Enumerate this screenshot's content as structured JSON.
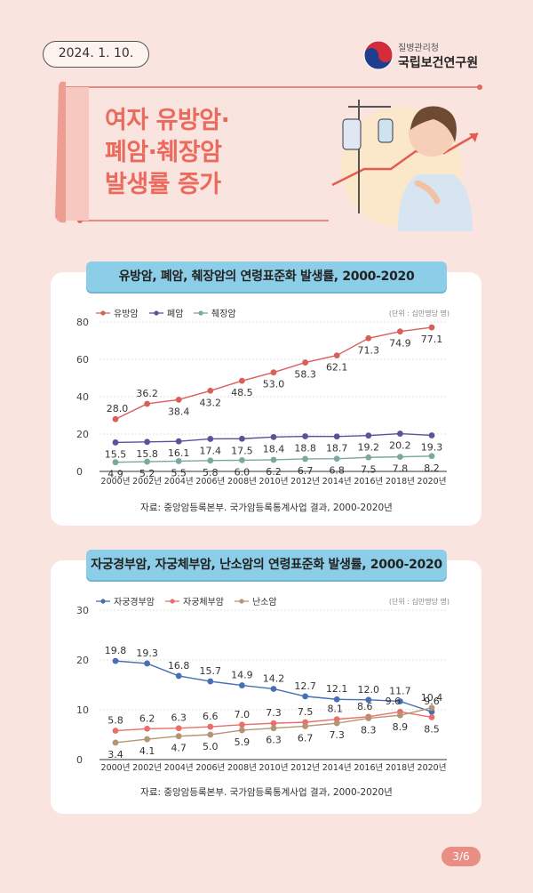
{
  "header": {
    "date": "2024. 1. 10.",
    "org_small": "질병관리청",
    "org_name": "국립보건연구원",
    "title": "여자 유방암·\n폐암·췌장암\n발생률 증가"
  },
  "colors": {
    "red": "#d9605a",
    "purple": "#5c5299",
    "teal": "#7ba8a0",
    "blue": "#4670b3",
    "pink": "#e86f6a",
    "tan": "#b59473",
    "accent": "#ea6a5d"
  },
  "chart_data": [
    {
      "type": "line",
      "title": "유방암, 폐암, 췌장암의 연령표준화 발생률, 2000-2020",
      "unit": "(단위 : 십만명당 명)",
      "source": "자료: 중앙암등록본부. 국가암등록통계사업 결과, 2000-2020년",
      "categories": [
        "2000년",
        "2002년",
        "2004년",
        "2006년",
        "2008년",
        "2010년",
        "2012년",
        "2014년",
        "2016년",
        "2018년",
        "2020년"
      ],
      "yticks": [
        "0",
        "20",
        "40",
        "60",
        "80"
      ],
      "ylim": [
        0,
        80
      ],
      "legend_position": "top-left",
      "series": [
        {
          "name": "유방암",
          "color": "#d9605a",
          "values": [
            28.0,
            36.2,
            38.4,
            43.2,
            48.5,
            53.0,
            58.3,
            62.1,
            71.3,
            74.9,
            77.1
          ],
          "labels": [
            "28.0",
            "36.2",
            "38.4",
            "43.2",
            "48.5",
            "53.0",
            "58.3",
            "62.1",
            "71.3",
            "74.9",
            "77.1"
          ]
        },
        {
          "name": "폐암",
          "color": "#5c5299",
          "values": [
            15.5,
            15.8,
            16.1,
            17.4,
            17.5,
            18.4,
            18.8,
            18.7,
            19.2,
            20.2,
            19.3
          ],
          "labels": [
            "15.5",
            "15.8",
            "16.1",
            "17.4",
            "17.5",
            "18.4",
            "18.8",
            "18.7",
            "19.2",
            "20.2",
            "19.3"
          ]
        },
        {
          "name": "췌장암",
          "color": "#7ba8a0",
          "values": [
            4.9,
            5.2,
            5.5,
            5.8,
            6.0,
            6.2,
            6.7,
            6.8,
            7.5,
            7.8,
            8.2
          ],
          "labels": [
            "4.9",
            "5.2",
            "5.5",
            "5.8",
            "6.0",
            "6.2",
            "6.7",
            "6.8",
            "7.5",
            "7.8",
            "8.2"
          ]
        }
      ]
    },
    {
      "type": "line",
      "title": "자궁경부암, 자궁체부암, 난소암의 연령표준화 발생률, 2000-2020",
      "unit": "(단위 : 십만명당 명)",
      "source": "자료: 중앙암등록본부. 국가암등록통계사업 결과, 2000-2020년",
      "categories": [
        "2000년",
        "2002년",
        "2004년",
        "2006년",
        "2008년",
        "2010년",
        "2012년",
        "2014년",
        "2016년",
        "2018년",
        "2020년"
      ],
      "yticks": [
        "0",
        "10",
        "20",
        "30"
      ],
      "ylim": [
        0,
        30
      ],
      "legend_position": "top-left",
      "series": [
        {
          "name": "자궁경부암",
          "color": "#4670b3",
          "values": [
            19.8,
            19.3,
            16.8,
            15.7,
            14.9,
            14.2,
            12.7,
            12.1,
            12.0,
            11.7,
            9.6
          ],
          "labels": [
            "19.8",
            "19.3",
            "16.8",
            "15.7",
            "14.9",
            "14.2",
            "12.7",
            "12.1",
            "12.0",
            "11.7",
            "9.6"
          ]
        },
        {
          "name": "자궁체부암",
          "color": "#e86f6a",
          "values": [
            5.8,
            6.2,
            6.3,
            6.6,
            7.0,
            7.3,
            7.5,
            8.1,
            8.6,
            9.6,
            8.5
          ],
          "labels": [
            "5.8",
            "6.2",
            "6.3",
            "6.6",
            "7.0",
            "7.3",
            "7.5",
            "8.1",
            "8.6",
            "9.6",
            "8.5"
          ]
        },
        {
          "name": "난소암",
          "color": "#b59473",
          "values": [
            3.4,
            4.1,
            4.7,
            5.0,
            5.9,
            6.3,
            6.7,
            7.3,
            8.3,
            8.9,
            10.4
          ],
          "labels": [
            "3.4",
            "4.1",
            "4.7",
            "5.0",
            "5.9",
            "6.3",
            "6.7",
            "7.3",
            "8.3",
            "8.9",
            "10.4"
          ]
        }
      ]
    }
  ],
  "page": "3/6"
}
